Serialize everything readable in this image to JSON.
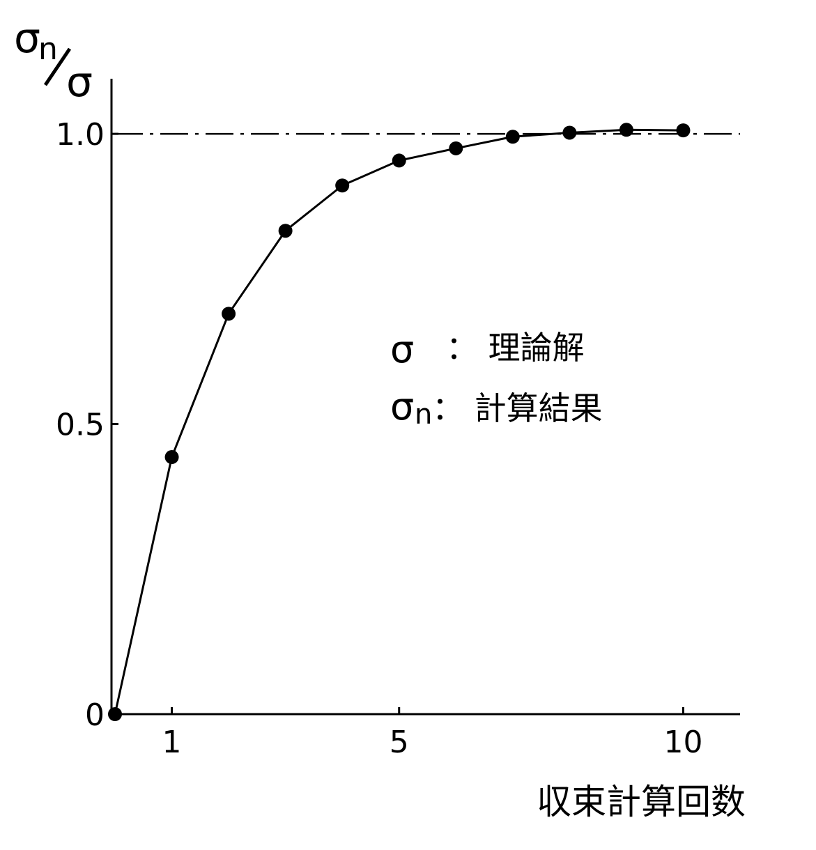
{
  "chart_data": {
    "type": "line",
    "y_label": {
      "symbol": "σ",
      "subscript": "n",
      "denominator": "σ"
    },
    "x_label": "収束計算回数",
    "annotations": [
      {
        "symbol": "σ",
        "subscript": "",
        "text": "： 理論解"
      },
      {
        "symbol": "σ",
        "subscript": "n",
        "text": "： 計算結果"
      }
    ],
    "x": [
      0,
      1,
      2,
      3,
      4,
      5,
      6,
      7,
      8,
      9,
      10
    ],
    "series": [
      {
        "color": "#000000",
        "values": [
          0,
          0.443,
          0.69,
          0.833,
          0.911,
          0.954,
          0.975,
          0.995,
          1.002,
          1.007,
          1.006
        ]
      }
    ],
    "reference_line": 1.0,
    "xlim": [
      0,
      11
    ],
    "xticks": [
      1,
      5,
      10
    ],
    "ylim": [
      0,
      1.095
    ],
    "yticks": [
      0,
      0.5,
      {
        "value": 1,
        "label": "1.0"
      }
    ],
    "grid": false
  }
}
